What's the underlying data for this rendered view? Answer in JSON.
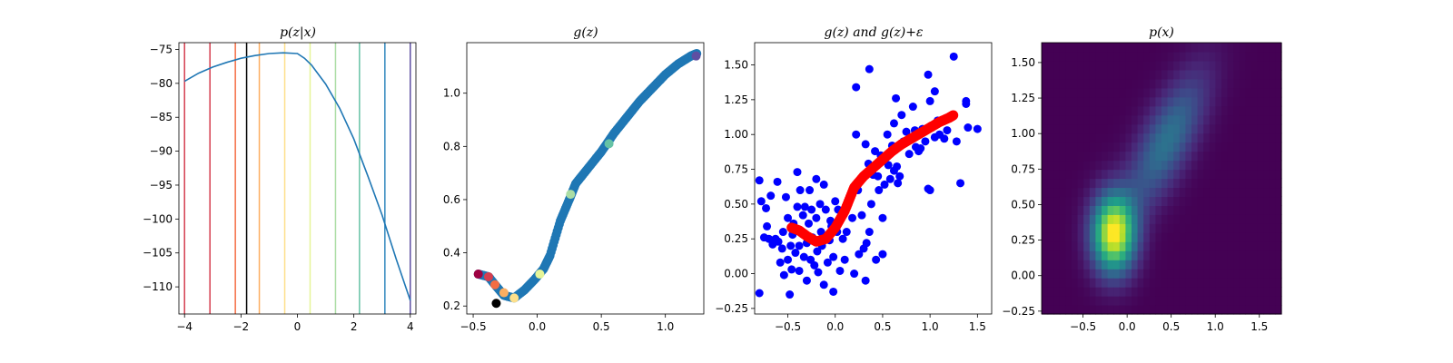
{
  "colors": {
    "line": "#1f77b4",
    "scatter_blue": "#0000ff",
    "red": "#ff0000",
    "black": "#000000"
  },
  "chart_data": [
    {
      "type": "line",
      "title": "p(z|x)",
      "xlim": [
        -4.2,
        4.2
      ],
      "ylim": [
        -114,
        -74
      ],
      "xticks": [
        -4,
        -2,
        0,
        2,
        4
      ],
      "xtick_labels": [
        "−4",
        "−2",
        "0",
        "2",
        "4"
      ],
      "yticks": [
        -75,
        -80,
        -85,
        -90,
        -95,
        -100,
        -105,
        -110
      ],
      "ytick_labels": [
        "−75",
        "−80",
        "−85",
        "−90",
        "−95",
        "−100",
        "−105",
        "−110"
      ],
      "series": [
        {
          "x": [
            -4.0,
            -3.5,
            -3.0,
            -2.5,
            -2.0,
            -1.5,
            -1.0,
            -0.5,
            0.0,
            0.25,
            0.5,
            1.0,
            1.5,
            2.0,
            2.5,
            3.0,
            3.5,
            4.0
          ],
          "y": [
            -79.7,
            -78.5,
            -77.6,
            -76.9,
            -76.3,
            -75.9,
            -75.6,
            -75.5,
            -75.6,
            -76.3,
            -77.3,
            -80.1,
            -83.7,
            -88.2,
            -93.7,
            -99.4,
            -105.9,
            -112.0
          ]
        }
      ],
      "vlines": [
        {
          "x": -4.0,
          "color": "#d53e4f"
        },
        {
          "x": -3.1,
          "color": "#d53e4f"
        },
        {
          "x": -2.2,
          "color": "#f46d43"
        },
        {
          "x": -1.8,
          "color": "#000000"
        },
        {
          "x": -1.35,
          "color": "#fdae61"
        },
        {
          "x": -0.45,
          "color": "#fee08b"
        },
        {
          "x": 0.45,
          "color": "#e6f598"
        },
        {
          "x": 1.35,
          "color": "#abdda4"
        },
        {
          "x": 2.2,
          "color": "#66c2a5"
        },
        {
          "x": 3.1,
          "color": "#3288bd"
        },
        {
          "x": 4.0,
          "color": "#5e4fa2"
        }
      ]
    },
    {
      "type": "scatter",
      "title": "g(z)",
      "xlim": [
        -0.55,
        1.3
      ],
      "ylim": [
        0.17,
        1.19
      ],
      "xticks": [
        -0.5,
        0.0,
        0.5,
        1.0
      ],
      "xtick_labels": [
        "−0.5",
        "0.0",
        "0.5",
        "1.0"
      ],
      "yticks": [
        0.2,
        0.4,
        0.6,
        0.8,
        1.0
      ],
      "ytick_labels": [
        "0.2",
        "0.4",
        "0.6",
        "0.8",
        "1.0"
      ],
      "curve": {
        "x": [
          -0.46,
          -0.38,
          -0.33,
          -0.26,
          -0.18,
          -0.1,
          -0.02,
          0.05,
          0.1,
          0.18,
          0.25,
          0.3,
          0.4,
          0.5,
          0.6,
          0.7,
          0.8,
          0.9,
          1.0,
          1.1,
          1.2,
          1.25
        ],
        "y": [
          0.32,
          0.31,
          0.28,
          0.24,
          0.23,
          0.26,
          0.3,
          0.34,
          0.39,
          0.52,
          0.6,
          0.66,
          0.72,
          0.78,
          0.85,
          0.91,
          0.97,
          1.02,
          1.07,
          1.11,
          1.14,
          1.15
        ]
      },
      "highlights": [
        {
          "x": -0.46,
          "y": 0.32,
          "color": "#9e0142"
        },
        {
          "x": -0.38,
          "y": 0.31,
          "color": "#d53e4f"
        },
        {
          "x": -0.33,
          "y": 0.28,
          "color": "#f46d43"
        },
        {
          "x": -0.32,
          "y": 0.21,
          "color": "#000000"
        },
        {
          "x": -0.26,
          "y": 0.25,
          "color": "#fdae61"
        },
        {
          "x": -0.18,
          "y": 0.23,
          "color": "#fee08b"
        },
        {
          "x": 0.02,
          "y": 0.32,
          "color": "#e6f598"
        },
        {
          "x": 0.26,
          "y": 0.62,
          "color": "#abdda4"
        },
        {
          "x": 0.56,
          "y": 0.81,
          "color": "#66c2a5"
        },
        {
          "x": 1.24,
          "y": 1.14,
          "color": "#5e4fa2"
        }
      ]
    },
    {
      "type": "scatter",
      "title": "g(z) and g(z)+ε",
      "xlim": [
        -0.85,
        1.65
      ],
      "ylim": [
        -0.29,
        1.66
      ],
      "xticks": [
        -0.5,
        0.0,
        0.5,
        1.0,
        1.5
      ],
      "xtick_labels": [
        "−0.5",
        "0.0",
        "0.5",
        "1.0",
        "1.5"
      ],
      "yticks": [
        -0.25,
        0.0,
        0.25,
        0.5,
        0.75,
        1.0,
        1.25,
        1.5
      ],
      "ytick_labels": [
        "−0.25",
        "0.00",
        "0.25",
        "0.50",
        "0.75",
        "1.00",
        "1.25",
        "1.50"
      ],
      "red_curve": {
        "x": [
          -0.46,
          -0.38,
          -0.3,
          -0.2,
          -0.1,
          0.0,
          0.1,
          0.2,
          0.3,
          0.4,
          0.5,
          0.6,
          0.7,
          0.8,
          0.9,
          1.0,
          1.1,
          1.2,
          1.25
        ],
        "y": [
          0.33,
          0.31,
          0.27,
          0.23,
          0.25,
          0.33,
          0.45,
          0.62,
          0.7,
          0.76,
          0.82,
          0.88,
          0.93,
          0.97,
          1.01,
          1.05,
          1.09,
          1.12,
          1.14
        ]
      },
      "points": [
        [
          -0.8,
          0.67
        ],
        [
          -0.8,
          -0.14
        ],
        [
          -0.78,
          0.52
        ],
        [
          -0.75,
          0.26
        ],
        [
          -0.73,
          0.47
        ],
        [
          -0.72,
          0.34
        ],
        [
          -0.7,
          0.25
        ],
        [
          -0.68,
          0.56
        ],
        [
          -0.66,
          0.21
        ],
        [
          -0.63,
          0.25
        ],
        [
          -0.61,
          0.66
        ],
        [
          -0.6,
          0.23
        ],
        [
          -0.58,
          0.08
        ],
        [
          -0.56,
          0.18
        ],
        [
          -0.55,
          0.3
        ],
        [
          -0.54,
          -0.01
        ],
        [
          -0.52,
          0.55
        ],
        [
          -0.5,
          0.4
        ],
        [
          -0.5,
          0.1
        ],
        [
          -0.48,
          -0.15
        ],
        [
          -0.47,
          0.2
        ],
        [
          -0.46,
          0.03
        ],
        [
          -0.45,
          0.28
        ],
        [
          -0.44,
          0.36
        ],
        [
          -0.42,
          0.15
        ],
        [
          -0.4,
          0.73
        ],
        [
          -0.4,
          0.48
        ],
        [
          -0.38,
          0.2
        ],
        [
          -0.38,
          0.02
        ],
        [
          -0.37,
          0.6
        ],
        [
          -0.35,
          0.3
        ],
        [
          -0.34,
          0.42
        ],
        [
          -0.33,
          0.12
        ],
        [
          -0.32,
          0.48
        ],
        [
          -0.3,
          0.22
        ],
        [
          -0.3,
          -0.05
        ],
        [
          -0.28,
          0.36
        ],
        [
          -0.27,
          0.6
        ],
        [
          -0.26,
          0.1
        ],
        [
          -0.25,
          0.46
        ],
        [
          -0.24,
          0.26
        ],
        [
          -0.22,
          0.06
        ],
        [
          -0.2,
          0.68
        ],
        [
          -0.2,
          0.4
        ],
        [
          -0.19,
          0.16
        ],
        [
          -0.18,
          0.01
        ],
        [
          -0.16,
          0.5
        ],
        [
          -0.15,
          0.3
        ],
        [
          -0.14,
          0.2
        ],
        [
          -0.12,
          0.64
        ],
        [
          -0.12,
          -0.08
        ],
        [
          -0.1,
          0.46
        ],
        [
          -0.08,
          0.08
        ],
        [
          -0.06,
          0.24
        ],
        [
          -0.05,
          0.38
        ],
        [
          -0.04,
          0.34
        ],
        [
          -0.02,
          0.12
        ],
        [
          -0.02,
          -0.13
        ],
        [
          0.0,
          0.52
        ],
        [
          0.02,
          0.3
        ],
        [
          0.03,
          0.46
        ],
        [
          0.05,
          0.02
        ],
        [
          0.08,
          0.25
        ],
        [
          0.1,
          0.1
        ],
        [
          0.12,
          0.3
        ],
        [
          0.15,
          0.54
        ],
        [
          0.18,
          0.4
        ],
        [
          0.2,
          0.0
        ],
        [
          0.22,
          1.34
        ],
        [
          0.22,
          1.0
        ],
        [
          0.24,
          0.6
        ],
        [
          0.25,
          0.14
        ],
        [
          0.28,
          0.42
        ],
        [
          0.3,
          0.18
        ],
        [
          0.32,
          0.93
        ],
        [
          0.32,
          -0.05
        ],
        [
          0.33,
          0.22
        ],
        [
          0.35,
          0.79
        ],
        [
          0.36,
          1.47
        ],
        [
          0.36,
          0.3
        ],
        [
          0.38,
          0.5
        ],
        [
          0.4,
          0.71
        ],
        [
          0.42,
          0.88
        ],
        [
          0.43,
          0.1
        ],
        [
          0.45,
          0.7
        ],
        [
          0.46,
          0.6
        ],
        [
          0.48,
          0.85
        ],
        [
          0.5,
          0.4
        ],
        [
          0.5,
          0.14
        ],
        [
          0.52,
          0.64
        ],
        [
          0.55,
          1.0
        ],
        [
          0.56,
          0.78
        ],
        [
          0.58,
          0.68
        ],
        [
          0.6,
          0.92
        ],
        [
          0.62,
          0.74
        ],
        [
          0.62,
          1.08
        ],
        [
          0.64,
          1.26
        ],
        [
          0.65,
          0.77
        ],
        [
          0.66,
          0.65
        ],
        [
          0.68,
          0.7
        ],
        [
          0.7,
          1.14
        ],
        [
          0.72,
          0.95
        ],
        [
          0.75,
          1.02
        ],
        [
          0.78,
          0.86
        ],
        [
          0.8,
          0.98
        ],
        [
          0.82,
          1.2
        ],
        [
          0.84,
          1.03
        ],
        [
          0.85,
          0.91
        ],
        [
          0.88,
          0.88
        ],
        [
          0.9,
          0.9
        ],
        [
          0.92,
          1.04
        ],
        [
          0.95,
          0.95
        ],
        [
          0.98,
          1.43
        ],
        [
          0.98,
          0.61
        ],
        [
          1.0,
          1.24
        ],
        [
          1.0,
          0.6
        ],
        [
          1.02,
          1.05
        ],
        [
          1.05,
          1.31
        ],
        [
          1.05,
          0.98
        ],
        [
          1.08,
          1.1
        ],
        [
          1.1,
          1.0
        ],
        [
          1.15,
          0.97
        ],
        [
          1.18,
          1.03
        ],
        [
          1.25,
          1.56
        ],
        [
          1.28,
          0.95
        ],
        [
          1.32,
          0.65
        ],
        [
          1.38,
          1.24
        ],
        [
          1.38,
          1.22
        ],
        [
          1.4,
          1.05
        ],
        [
          1.5,
          1.04
        ]
      ]
    },
    {
      "type": "heatmap",
      "title": "p(x)",
      "xlim": [
        -0.97,
        1.75
      ],
      "ylim": [
        -0.27,
        1.64
      ],
      "xticks": [
        -0.5,
        0.0,
        0.5,
        1.0,
        1.5
      ],
      "xtick_labels": [
        "−0.5",
        "0.0",
        "0.5",
        "1.0",
        "1.5"
      ],
      "yticks": [
        -0.25,
        0.0,
        0.25,
        0.5,
        0.75,
        1.0,
        1.25,
        1.5
      ],
      "ytick_labels": [
        "−0.25",
        "0.00",
        "0.25",
        "0.50",
        "0.75",
        "1.00",
        "1.25",
        "1.50"
      ],
      "peak": {
        "x": -0.15,
        "y": 0.3
      },
      "ridge": {
        "x": 0.45,
        "y": 0.95
      },
      "colormap": "viridis"
    }
  ]
}
